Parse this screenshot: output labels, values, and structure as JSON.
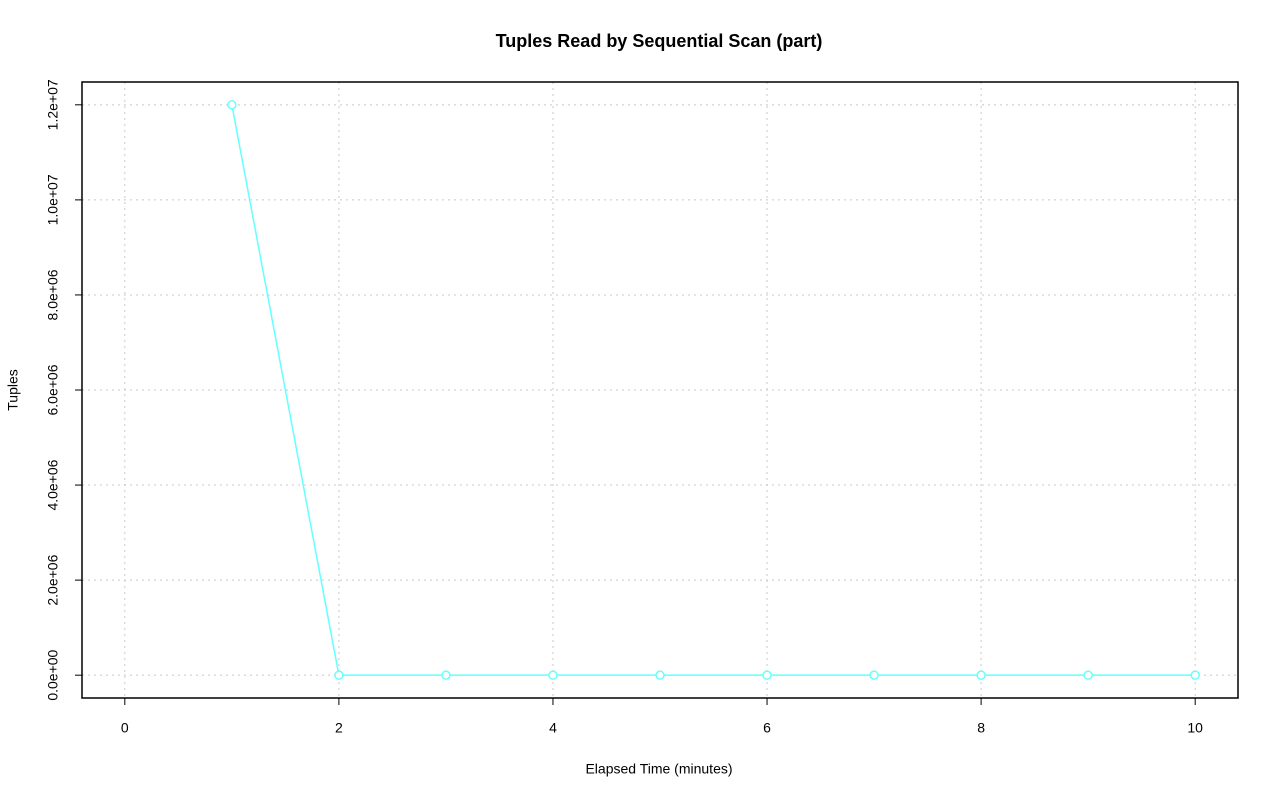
{
  "chart_data": {
    "type": "line",
    "title": "Tuples Read by Sequential Scan (part)",
    "x_label": "Elapsed Time (minutes)",
    "y_label": "Tuples",
    "x": [
      1,
      2,
      3,
      4,
      5,
      6,
      7,
      8,
      9,
      10
    ],
    "series": [
      {
        "name": "Tuples",
        "color": "#66ffff",
        "values": [
          12000000,
          0,
          0,
          0,
          0,
          0,
          0,
          0,
          0,
          0
        ]
      }
    ],
    "xlim": [
      -0.4,
      10.4
    ],
    "xticks": [
      0,
      2,
      4,
      6,
      8,
      10
    ],
    "ylim": [
      -480000,
      12480000
    ],
    "yticks": [
      {
        "value": 0,
        "label": "0.0e+00"
      },
      {
        "value": 2000000,
        "label": "2.0e+06"
      },
      {
        "value": 4000000,
        "label": "4.0e+06"
      },
      {
        "value": 6000000,
        "label": "6.0e+06"
      },
      {
        "value": 8000000,
        "label": "8.0e+06"
      },
      {
        "value": 10000000,
        "label": "1.0e+07"
      },
      {
        "value": 12000000,
        "label": "1.2e+07"
      }
    ],
    "grid": true
  }
}
